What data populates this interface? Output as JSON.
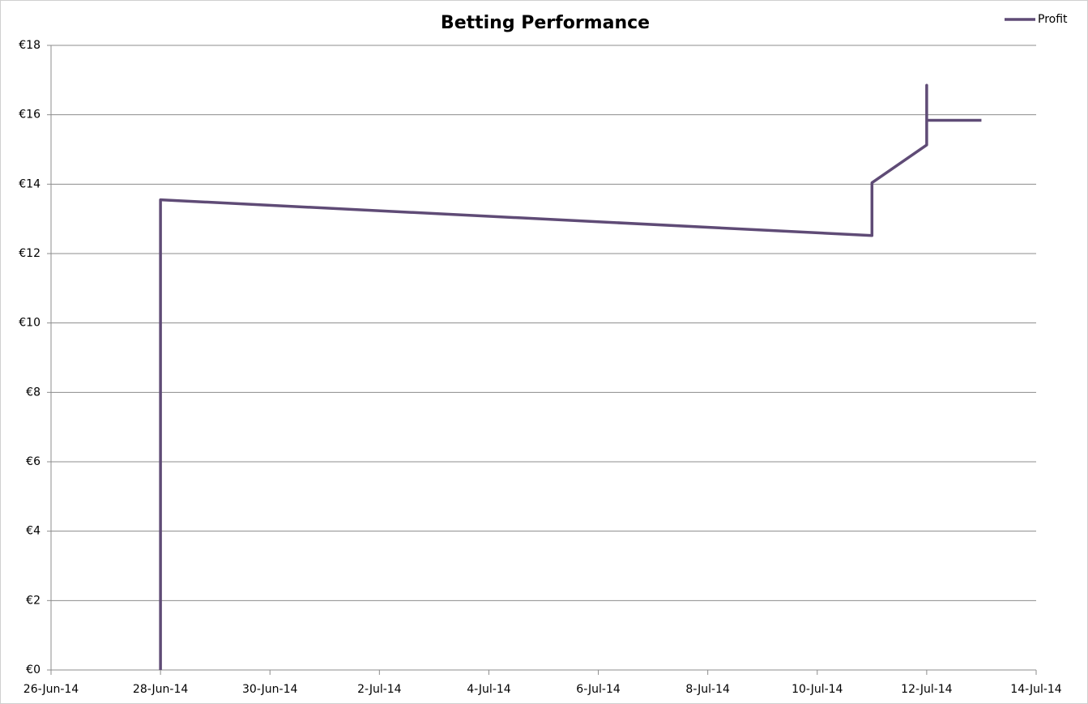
{
  "chart_data": {
    "type": "line",
    "title": "Betting Performance",
    "x": [
      "28-Jun-14",
      "28-Jun-14",
      "11-Jul-14",
      "11-Jul-14",
      "12-Jul-14",
      "12-Jul-14",
      "12-Jul-14",
      "13-Jul-14"
    ],
    "series": [
      {
        "name": "Profit",
        "color": "#5f4b76",
        "values": [
          0,
          13.55,
          12.52,
          14.04,
          15.13,
          16.85,
          15.84,
          15.84
        ]
      }
    ],
    "xlim": [
      "26-Jun-14",
      "14-Jul-14"
    ],
    "xticks": [
      "26-Jun-14",
      "28-Jun-14",
      "30-Jun-14",
      "2-Jul-14",
      "4-Jul-14",
      "6-Jul-14",
      "8-Jul-14",
      "10-Jul-14",
      "12-Jul-14",
      "14-Jul-14"
    ],
    "ylim": [
      0,
      18
    ],
    "yticks": [
      {
        "value": 0,
        "label": "€0"
      },
      {
        "value": 2,
        "label": "€2"
      },
      {
        "value": 4,
        "label": "€4"
      },
      {
        "value": 6,
        "label": "€6"
      },
      {
        "value": 8,
        "label": "€8"
      },
      {
        "value": 10,
        "label": "€10"
      },
      {
        "value": 12,
        "label": "€12"
      },
      {
        "value": 14,
        "label": "€14"
      },
      {
        "value": 16,
        "label": "€16"
      },
      {
        "value": 18,
        "label": "€18"
      }
    ],
    "grid": true,
    "legend": "top-right"
  }
}
